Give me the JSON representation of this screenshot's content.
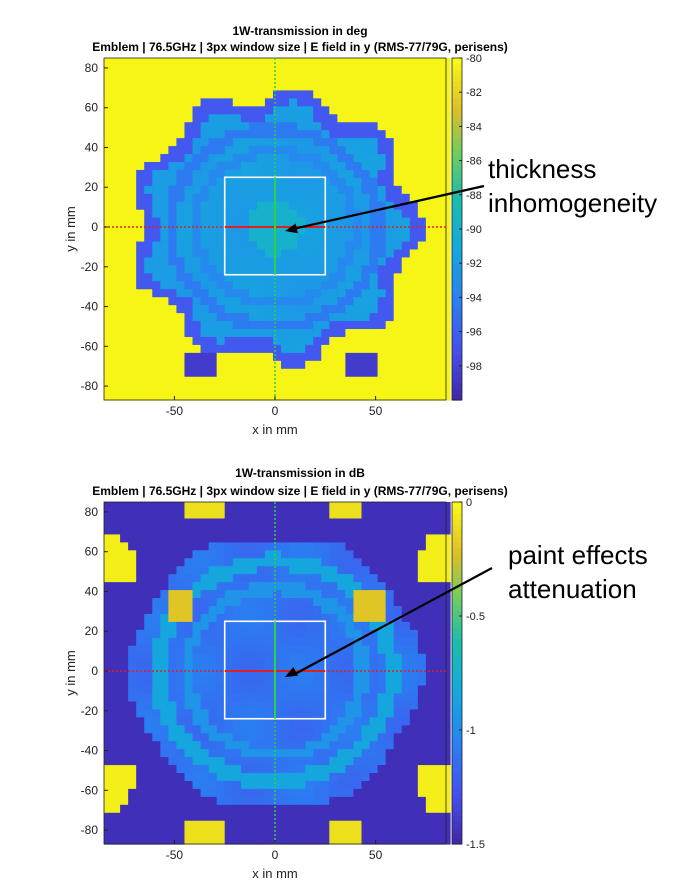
{
  "chart_data": [
    {
      "type": "heatmap",
      "title": "1W-transmission in deg",
      "subtitle": "Emblem | 76.5GHz | 3px window size | E field in y (RMS-77/79G, perisens)",
      "xlabel": "x in mm",
      "ylabel": "y in mm",
      "xlim": [
        -85,
        85
      ],
      "ylim": [
        -87,
        85
      ],
      "x_ticks": [
        -50,
        0,
        50
      ],
      "y_ticks": [
        80,
        60,
        40,
        20,
        0,
        -20,
        -40,
        -60,
        -80
      ],
      "colorbar": {
        "min": -100,
        "max": -80,
        "ticks": [
          -80,
          -82,
          -84,
          -86,
          -88,
          -90,
          -92,
          -94,
          -96,
          -98
        ]
      },
      "values_summary": {
        "outside": -80,
        "sample_body": -92,
        "rim_ring": -96,
        "center_patch": -90
      },
      "measurement_box": {
        "x": [
          -25,
          25
        ],
        "y": [
          -24,
          25
        ]
      },
      "crosshair": {
        "x_line": 0,
        "y_line": 0
      },
      "annotation": {
        "text": [
          "thickness",
          "inhomogeneity"
        ],
        "points_to": [
          5,
          -2
        ]
      }
    },
    {
      "type": "heatmap",
      "title": "1W-transmission in dB",
      "subtitle": "Emblem | 76.5GHz | 3px window size | E field in y (RMS-77/79G, perisens)",
      "xlabel": "x in mm",
      "ylabel": "y in mm",
      "xlim": [
        -85,
        85
      ],
      "ylim": [
        -87,
        85
      ],
      "x_ticks": [
        -50,
        0,
        50
      ],
      "y_ticks": [
        80,
        60,
        40,
        20,
        0,
        -20,
        -40,
        -60,
        -80
      ],
      "colorbar": {
        "min": -1.5,
        "max": 0,
        "ticks": [
          0,
          -0.5,
          -1,
          -1.5
        ]
      },
      "values_summary": {
        "outside": -1.45,
        "sample_body": -1.1,
        "rim_ring": -0.85,
        "corner_patches": -0.05
      },
      "measurement_box": {
        "x": [
          -25,
          25
        ],
        "y": [
          -24,
          25
        ]
      },
      "crosshair": {
        "x_line": 0,
        "y_line": 0
      },
      "annotation": {
        "text": [
          "paint effects",
          "attenuation"
        ],
        "points_to": [
          5,
          -3
        ]
      }
    }
  ]
}
